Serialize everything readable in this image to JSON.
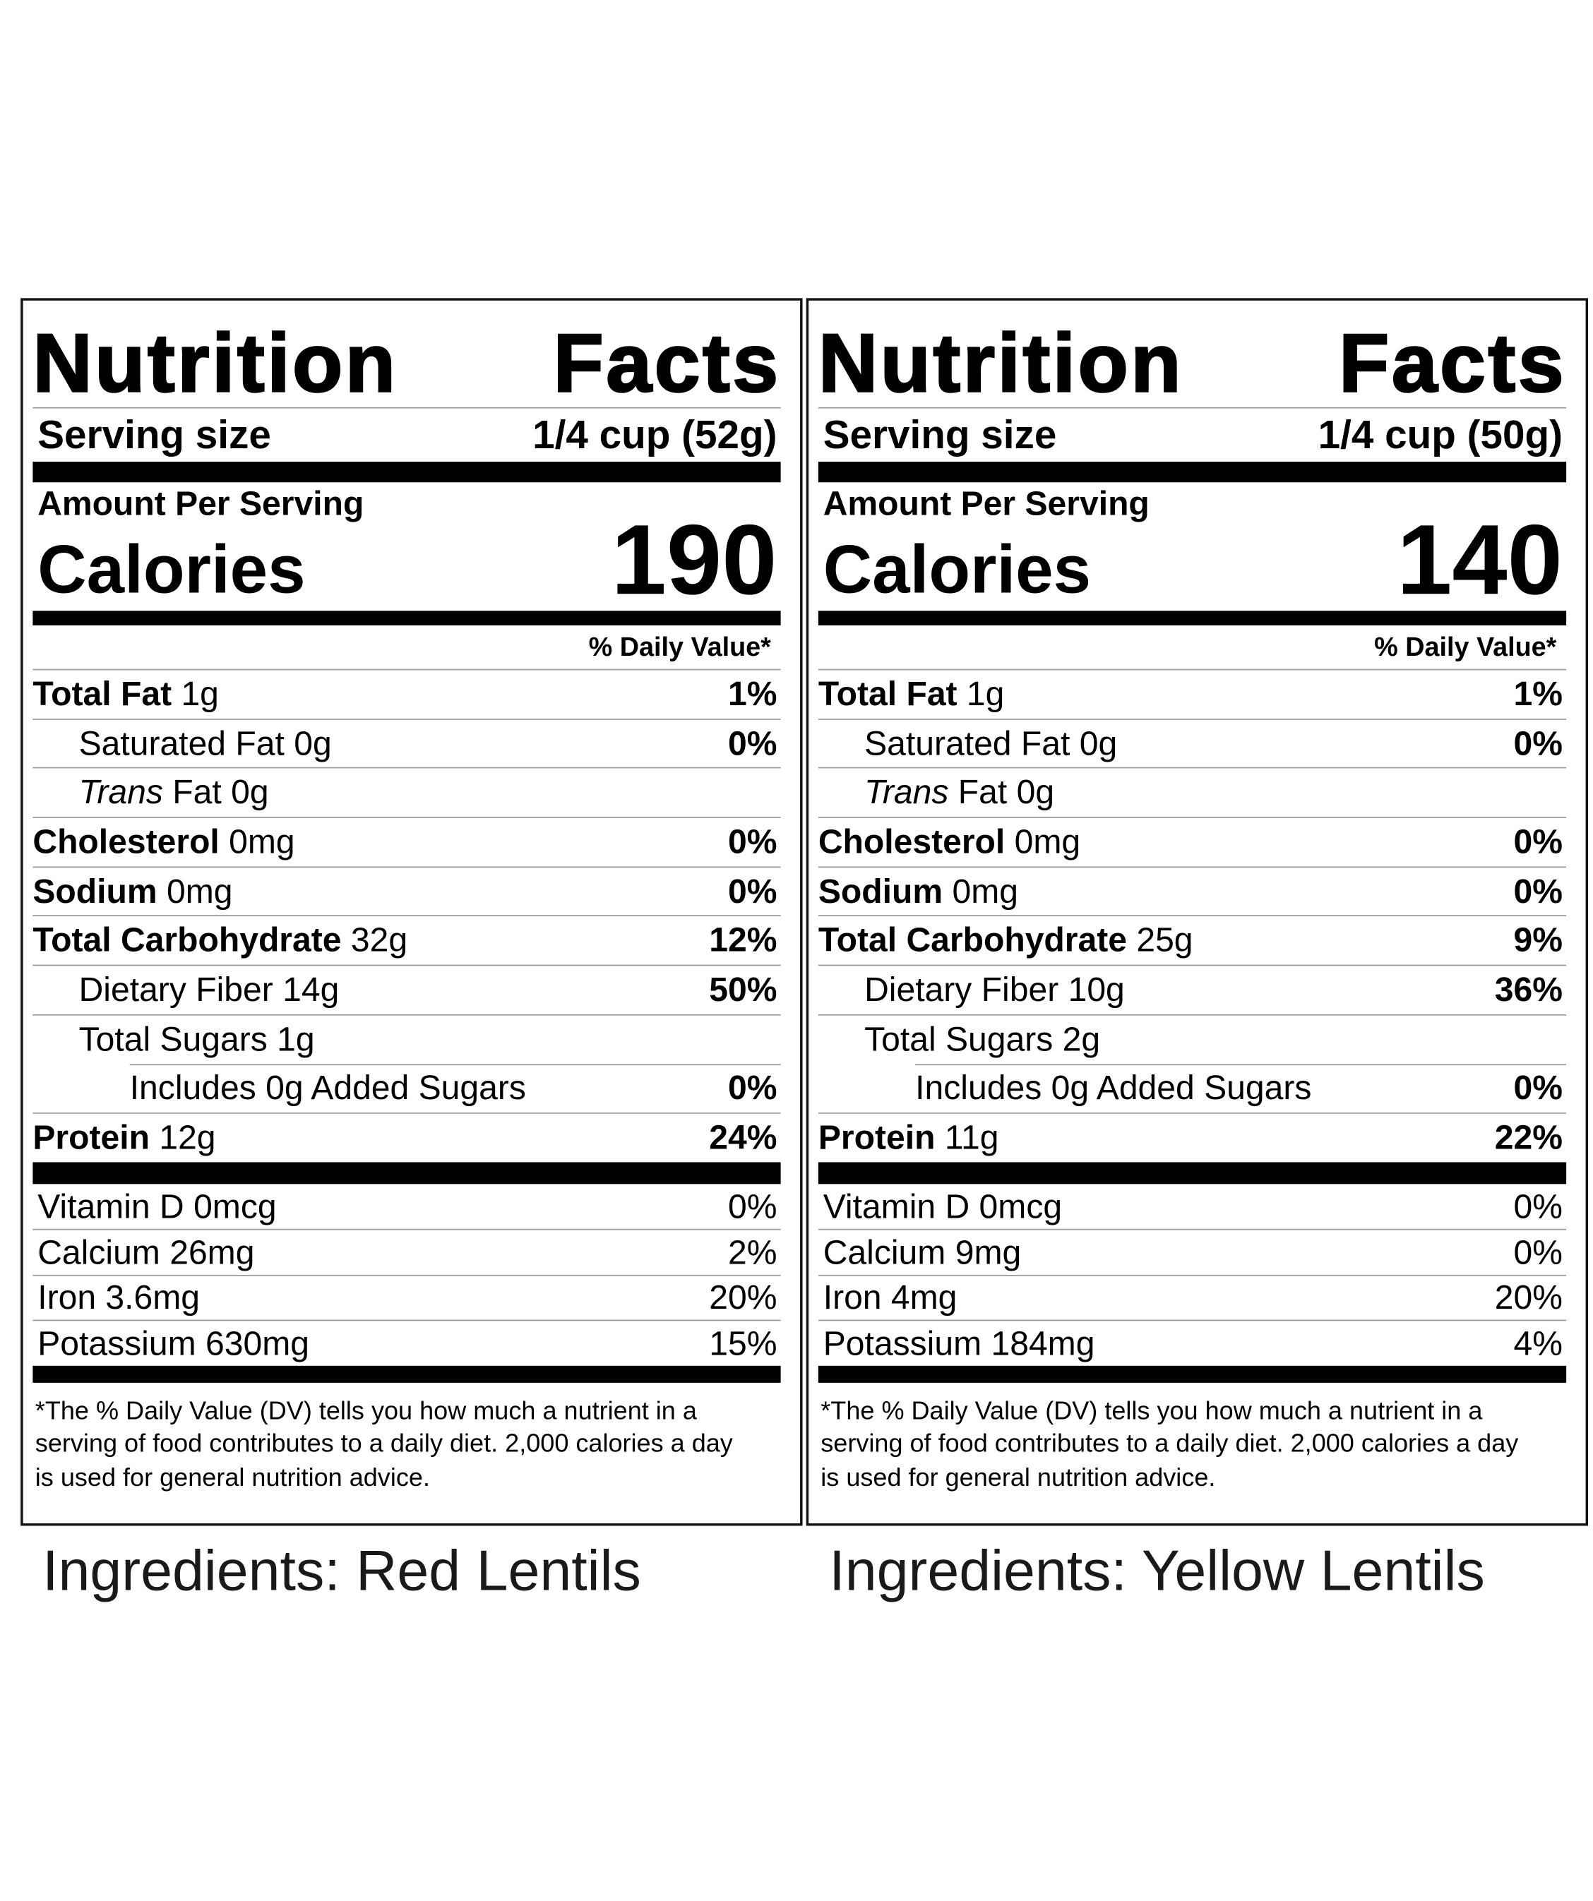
{
  "labels": [
    {
      "title": "Nutrition Facts",
      "serving_size_label": "Serving size",
      "serving_size": "1/4 cup (52g)",
      "amount_per_serving": "Amount Per Serving",
      "calories_label": "Calories",
      "calories": 190,
      "dv_header": "% Daily Value*",
      "nutrients": [
        {
          "name": "Total Fat",
          "amount": "1g",
          "dv": "1%",
          "sub": [
            {
              "name": "Saturated Fat",
              "amount": "0g",
              "dv": "0%"
            },
            {
              "prefix": "Trans",
              "name": "Fat",
              "amount": "0g"
            }
          ]
        },
        {
          "name": "Cholesterol",
          "amount": "0mg",
          "dv": "0%"
        },
        {
          "name": "Sodium",
          "amount": "0mg",
          "dv": "0%"
        },
        {
          "name": "Total Carbohydrate",
          "amount": "32g",
          "dv": "12%",
          "sub": [
            {
              "name": "Dietary Fiber",
              "amount": "14g",
              "dv": "50%"
            },
            {
              "name": "Total Sugars",
              "amount": "1g",
              "sub": [
                {
                  "name": "Includes 0g Added Sugars",
                  "dv": "0%"
                }
              ]
            }
          ]
        },
        {
          "name": "Protein",
          "amount": "12g",
          "dv": "24%"
        }
      ],
      "vitamins": [
        {
          "name": "Vitamin D",
          "amount": "0mcg",
          "dv": "0%"
        },
        {
          "name": "Calcium",
          "amount": "26mg",
          "dv": "2%"
        },
        {
          "name": "Iron",
          "amount": "3.6mg",
          "dv": "20%"
        },
        {
          "name": "Potassium",
          "amount": "630mg",
          "dv": "15%"
        }
      ],
      "footnote": "*The % Daily Value (DV) tells you how much a nutrient in a serving of food contributes to a daily diet. 2,000 calories a day is used for general nutrition advice.",
      "ingredients": "Ingredients: Red Lentils"
    },
    {
      "title": "Nutrition Facts",
      "serving_size_label": "Serving size",
      "serving_size": "1/4 cup (50g)",
      "amount_per_serving": "Amount Per Serving",
      "calories_label": "Calories",
      "calories": 140,
      "dv_header": "% Daily Value*",
      "nutrients": [
        {
          "name": "Total Fat",
          "amount": "1g",
          "dv": "1%",
          "sub": [
            {
              "name": "Saturated Fat",
              "amount": "0g",
              "dv": "0%"
            },
            {
              "prefix": "Trans",
              "name": "Fat",
              "amount": "0g"
            }
          ]
        },
        {
          "name": "Cholesterol",
          "amount": "0mg",
          "dv": "0%"
        },
        {
          "name": "Sodium",
          "amount": "0mg",
          "dv": "0%"
        },
        {
          "name": "Total Carbohydrate",
          "amount": "25g",
          "dv": "9%",
          "sub": [
            {
              "name": "Dietary Fiber",
              "amount": "10g",
              "dv": "36%"
            },
            {
              "name": "Total Sugars",
              "amount": "2g",
              "sub": [
                {
                  "name": "Includes 0g Added Sugars",
                  "dv": "0%"
                }
              ]
            }
          ]
        },
        {
          "name": "Protein",
          "amount": "11g",
          "dv": "22%"
        }
      ],
      "vitamins": [
        {
          "name": "Vitamin D",
          "amount": "0mcg",
          "dv": "0%"
        },
        {
          "name": "Calcium",
          "amount": "9mg",
          "dv": "0%"
        },
        {
          "name": "Iron",
          "amount": "4mg",
          "dv": "20%"
        },
        {
          "name": "Potassium",
          "amount": "184mg",
          "dv": "4%"
        }
      ],
      "footnote": "*The % Daily Value (DV) tells you how much a nutrient in a serving of food contributes to a daily diet. 2,000 calories a day is used for general nutrition advice.",
      "ingredients": "Ingredients: Yellow Lentils"
    }
  ]
}
